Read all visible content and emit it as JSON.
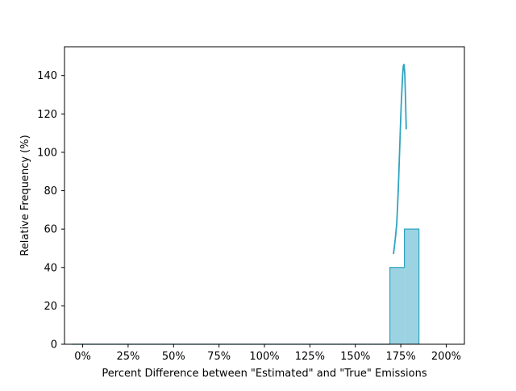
{
  "chart_data": {
    "type": "histogram",
    "title": "",
    "xlabel": "Percent Difference between \"Estimated\" and \"True\" Emissions",
    "ylabel": "Relative Frequency (%)",
    "xlim": [
      -10,
      210
    ],
    "ylim": [
      0,
      155
    ],
    "x_ticks": [
      0,
      25,
      50,
      75,
      100,
      125,
      150,
      175,
      200
    ],
    "x_tick_labels": [
      "0%",
      "25%",
      "50%",
      "75%",
      "100%",
      "125%",
      "150%",
      "175%",
      "200%"
    ],
    "y_ticks": [
      0,
      20,
      40,
      60,
      80,
      100,
      120,
      140
    ],
    "y_tick_labels": [
      "0",
      "20",
      "40",
      "60",
      "80",
      "100",
      "120",
      "140"
    ],
    "grid": false,
    "legend": "none",
    "bin_edges": [
      -6,
      2,
      10,
      18,
      26,
      34,
      42,
      50,
      58,
      66,
      74,
      82,
      90,
      98,
      106,
      114,
      122,
      130,
      138,
      146,
      154,
      162,
      169,
      177,
      185
    ],
    "bin_values": [
      0,
      0,
      0,
      0,
      0,
      0,
      0,
      0,
      0,
      0,
      0,
      0,
      0,
      0,
      0,
      0,
      0,
      0,
      0,
      0,
      0,
      0,
      40,
      60
    ],
    "kde_curve": {
      "x": [
        171,
        172,
        172.8,
        173.6,
        174.4,
        175.2,
        176,
        176.4,
        176.8,
        177.2,
        177.6,
        178
      ],
      "y": [
        47,
        55,
        63,
        80,
        102,
        124,
        140,
        145,
        146,
        141,
        128,
        112
      ]
    },
    "colors": {
      "bar_fill": "#9cd3e2",
      "bar_edge": "#2fa4c0",
      "line": "#2fa4c0"
    }
  }
}
